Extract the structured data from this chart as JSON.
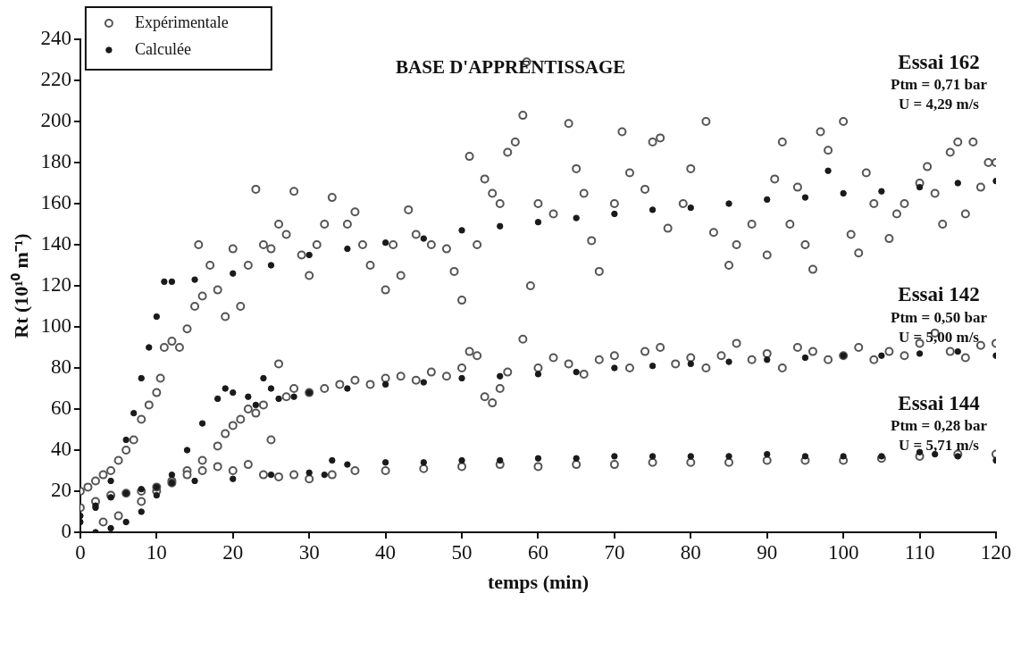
{
  "chart_data": {
    "type": "scatter",
    "title": "BASE D'APPRENTISSAGE",
    "xlabel": "temps (min)",
    "ylabel": "Rt (10¹⁰ m⁻¹)",
    "xlim": [
      0,
      120
    ],
    "xticks": [
      0,
      10,
      20,
      30,
      40,
      50,
      60,
      70,
      80,
      90,
      100,
      110,
      120
    ],
    "ylim": [
      0,
      240
    ],
    "yticks": [
      0,
      20,
      40,
      60,
      80,
      100,
      120,
      140,
      160,
      180,
      200,
      220,
      240
    ],
    "grid": false,
    "legend": "top left",
    "marker": "circle",
    "annotations": [
      "Essai 162\nPtm = 0,71 bar\nU = 4,29 m/s",
      "Essai 142\nPtm = 0,50 bar\nU = 5,00 m/s",
      "Essai 144\nPtm = 0,28 bar\nU = 5,71 m/s"
    ],
    "series": [
      {
        "name": "Expérimentale",
        "color": "#555555",
        "x": [
          0,
          1,
          2,
          3,
          4,
          5,
          6,
          7,
          8,
          9,
          10,
          10.5,
          11,
          12,
          13,
          14,
          15,
          15.5,
          16,
          17,
          18,
          19,
          20,
          21,
          22,
          23,
          24,
          25,
          26,
          27,
          28,
          29,
          30,
          31,
          32,
          33,
          35,
          36,
          37,
          38,
          40,
          41,
          42,
          43,
          44,
          46,
          48,
          49,
          50,
          51,
          52,
          53,
          54,
          55,
          56,
          57,
          58,
          58.5,
          59,
          60,
          62,
          64,
          65,
          66,
          67,
          68,
          70,
          71,
          72,
          74,
          75,
          76,
          77,
          79,
          80,
          82,
          83,
          85,
          86,
          88,
          90,
          91,
          92,
          93,
          94,
          95,
          96,
          97,
          98,
          100,
          101,
          102,
          103,
          104,
          106,
          107,
          108,
          110,
          111,
          112,
          113,
          114,
          115,
          116,
          117,
          118,
          119,
          120,
          3,
          5,
          8,
          10,
          12,
          14,
          16,
          18,
          19,
          20,
          21,
          22,
          23,
          24,
          25,
          26,
          27,
          28,
          30,
          32,
          34,
          36,
          38,
          40,
          42,
          44,
          46,
          48,
          50,
          51,
          52,
          53,
          54,
          55,
          56,
          58,
          60,
          62,
          64,
          66,
          68,
          70,
          72,
          74,
          76,
          78,
          80,
          82,
          84,
          86,
          88,
          90,
          92,
          94,
          96,
          98,
          100,
          102,
          104,
          106,
          108,
          110,
          112,
          114,
          116,
          118,
          120,
          0,
          2,
          4,
          6,
          8,
          10,
          12,
          14,
          16,
          18,
          20,
          22,
          24,
          26,
          28,
          30,
          33,
          36,
          40,
          45,
          50,
          55,
          60,
          65,
          70,
          75,
          80,
          85,
          90,
          95,
          100,
          105,
          110,
          115,
          120
        ],
        "values": [
          20,
          22,
          25,
          28,
          30,
          35,
          40,
          45,
          55,
          62,
          68,
          75,
          90,
          93,
          90,
          99,
          110,
          140,
          115,
          130,
          118,
          105,
          138,
          110,
          130,
          167,
          140,
          138,
          150,
          145,
          166,
          135,
          125,
          140,
          150,
          163,
          150,
          156,
          140,
          130,
          118,
          140,
          125,
          157,
          145,
          140,
          138,
          127,
          113,
          183,
          140,
          172,
          165,
          160,
          185,
          190,
          203,
          229,
          120,
          160,
          155,
          199,
          177,
          165,
          142,
          127,
          160,
          195,
          175,
          167,
          190,
          192,
          148,
          160,
          177,
          200,
          146,
          130,
          140,
          150,
          135,
          172,
          190,
          150,
          168,
          140,
          128,
          195,
          186,
          200,
          145,
          136,
          175,
          160,
          143,
          155,
          160,
          170,
          178,
          165,
          150,
          185,
          190,
          155,
          190,
          168,
          180,
          180,
          5,
          8,
          15,
          20,
          25,
          30,
          35,
          42,
          48,
          52,
          55,
          60,
          58,
          62,
          45,
          82,
          66,
          70,
          68,
          70,
          72,
          74,
          72,
          75,
          76,
          74,
          78,
          76,
          80,
          88,
          86,
          66,
          63,
          70,
          78,
          94,
          80,
          85,
          82,
          77,
          84,
          86,
          80,
          88,
          90,
          82,
          85,
          80,
          86,
          92,
          84,
          87,
          80,
          90,
          88,
          84,
          86,
          90,
          84,
          88,
          86,
          92,
          97,
          88,
          85,
          91,
          92,
          12,
          15,
          18,
          19,
          20,
          22,
          24,
          28,
          30,
          32,
          30,
          33,
          28,
          27,
          28,
          26,
          28,
          30,
          30,
          31,
          32,
          33,
          32,
          33,
          33,
          34,
          34,
          34,
          35,
          35,
          35,
          36,
          37,
          38,
          38
        ]
      },
      {
        "name": "Calculée",
        "color": "#1a1a1a",
        "x": [
          0,
          2,
          4,
          6,
          7,
          8,
          9,
          10,
          11,
          12,
          15,
          20,
          25,
          30,
          35,
          40,
          45,
          50,
          55,
          60,
          65,
          70,
          75,
          80,
          85,
          90,
          95,
          98,
          100,
          105,
          110,
          115,
          120,
          2,
          4,
          6,
          8,
          10,
          12,
          14,
          16,
          18,
          19,
          20,
          22,
          23,
          24,
          25,
          26,
          28,
          30,
          35,
          40,
          45,
          50,
          55,
          60,
          65,
          70,
          75,
          80,
          85,
          90,
          95,
          100,
          105,
          110,
          115,
          120,
          0,
          2,
          4,
          6,
          8,
          10,
          12,
          15,
          20,
          25,
          30,
          32,
          33,
          35,
          40,
          45,
          50,
          55,
          60,
          65,
          70,
          75,
          80,
          85,
          90,
          95,
          100,
          105,
          110,
          112,
          115,
          120
        ],
        "values": [
          5,
          12,
          25,
          45,
          58,
          75,
          90,
          105,
          122,
          122,
          123,
          126,
          130,
          135,
          138,
          141,
          143,
          147,
          149,
          151,
          153,
          155,
          157,
          158,
          160,
          162,
          163,
          176,
          165,
          166,
          168,
          170,
          171,
          0,
          2,
          5,
          10,
          18,
          28,
          40,
          53,
          65,
          70,
          68,
          66,
          62,
          75,
          70,
          65,
          66,
          68,
          70,
          72,
          73,
          75,
          76,
          77,
          78,
          80,
          81,
          82,
          83,
          84,
          85,
          86,
          86,
          87,
          88,
          86,
          8,
          13,
          17,
          19,
          21,
          22,
          24,
          25,
          26,
          28,
          29,
          28,
          35,
          33,
          34,
          34,
          35,
          35,
          36,
          36,
          37,
          37,
          37,
          37,
          38,
          37,
          37,
          37,
          39,
          38,
          37,
          35
        ]
      }
    ]
  }
}
